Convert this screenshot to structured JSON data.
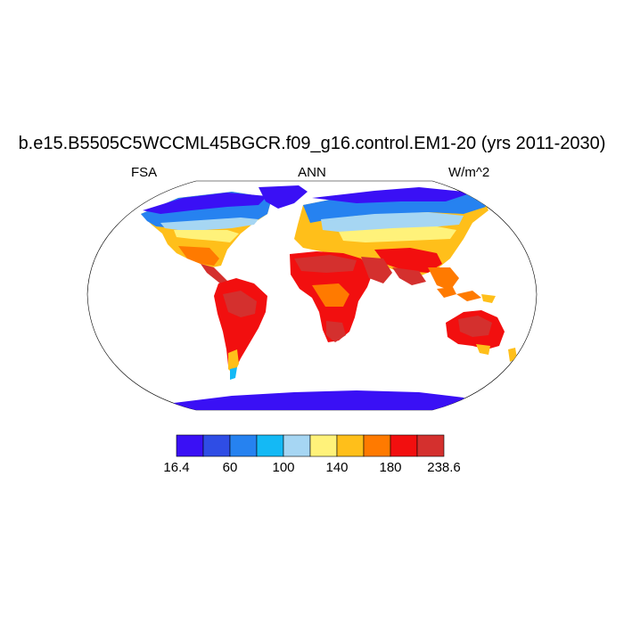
{
  "title": "b.e15.B5505C5WCCML45BGCR.f09_g16.control.EM1-20 (yrs 2011-2030)",
  "left_label": "FSA",
  "center_label": "ANN",
  "right_label": "W/m^2",
  "colorbar": {
    "colors": [
      "#3a10f5",
      "#2f4de5",
      "#2682f0",
      "#14b9f5",
      "#a6d6f3",
      "#fff27a",
      "#ffbf1a",
      "#ff7a00",
      "#f20f0f",
      "#d4302e"
    ],
    "tick_labels": [
      "16.4",
      "60",
      "100",
      "140",
      "180",
      "238.6"
    ]
  }
}
